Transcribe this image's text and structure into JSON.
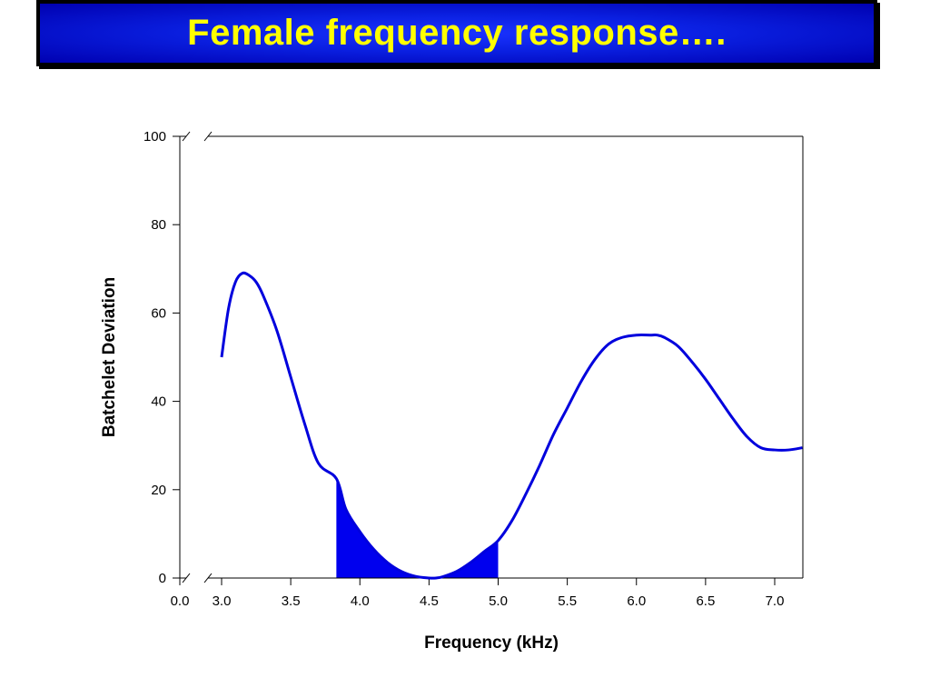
{
  "slide": {
    "title": "Female frequency response…."
  },
  "colors": {
    "title_bg": "#0a1fe0",
    "title_text": "#ffff00",
    "curve": "#0000dd",
    "fill": "#0000ee"
  },
  "chart_data": {
    "type": "line",
    "title": "",
    "xlabel": "Frequency (kHz)",
    "ylabel": "Batchelet Deviation",
    "xlim": [
      3.0,
      7.2
    ],
    "ylim": [
      0,
      100
    ],
    "axis_break": true,
    "x_origin_label": "0.0",
    "x_ticks": [
      3.0,
      3.5,
      4.0,
      4.5,
      5.0,
      5.5,
      6.0,
      6.5,
      7.0
    ],
    "x_tick_labels": [
      "3.0",
      "3.5",
      "4.0",
      "4.5",
      "5.0",
      "5.5",
      "6.0",
      "6.5",
      "7.0"
    ],
    "y_ticks": [
      0,
      20,
      40,
      60,
      80,
      100
    ],
    "y_tick_labels": [
      "0",
      "20",
      "40",
      "60",
      "80",
      "100"
    ],
    "grid": false,
    "series": [
      {
        "x": [
          3.0,
          3.05,
          3.1,
          3.15,
          3.2,
          3.25,
          3.3,
          3.4,
          3.5,
          3.6,
          3.7,
          3.83,
          3.9,
          4.0,
          4.1,
          4.2,
          4.3,
          4.4,
          4.5,
          4.55,
          4.6,
          4.7,
          4.8,
          4.9,
          5.0,
          5.1,
          5.2,
          5.3,
          5.4,
          5.5,
          5.6,
          5.7,
          5.8,
          5.9,
          6.0,
          6.1,
          6.15,
          6.2,
          6.3,
          6.4,
          6.5,
          6.6,
          6.7,
          6.8,
          6.9,
          7.0,
          7.1,
          7.2
        ],
        "y": [
          50,
          61,
          67,
          69,
          68.5,
          67,
          64,
          56,
          45.5,
          35,
          26,
          22.5,
          15.5,
          10.5,
          6.5,
          3.5,
          1.5,
          0.4,
          0,
          0,
          0.3,
          1.5,
          3.5,
          6,
          8.5,
          13,
          19,
          25.5,
          32.5,
          38.5,
          44.5,
          49.5,
          53,
          54.5,
          55,
          55,
          55,
          54.5,
          52.5,
          49,
          45,
          40.5,
          36,
          32,
          29.5,
          29,
          29,
          29.5
        ]
      }
    ],
    "shaded_region": {
      "x_start": 3.83,
      "x_end": 5.0
    }
  }
}
